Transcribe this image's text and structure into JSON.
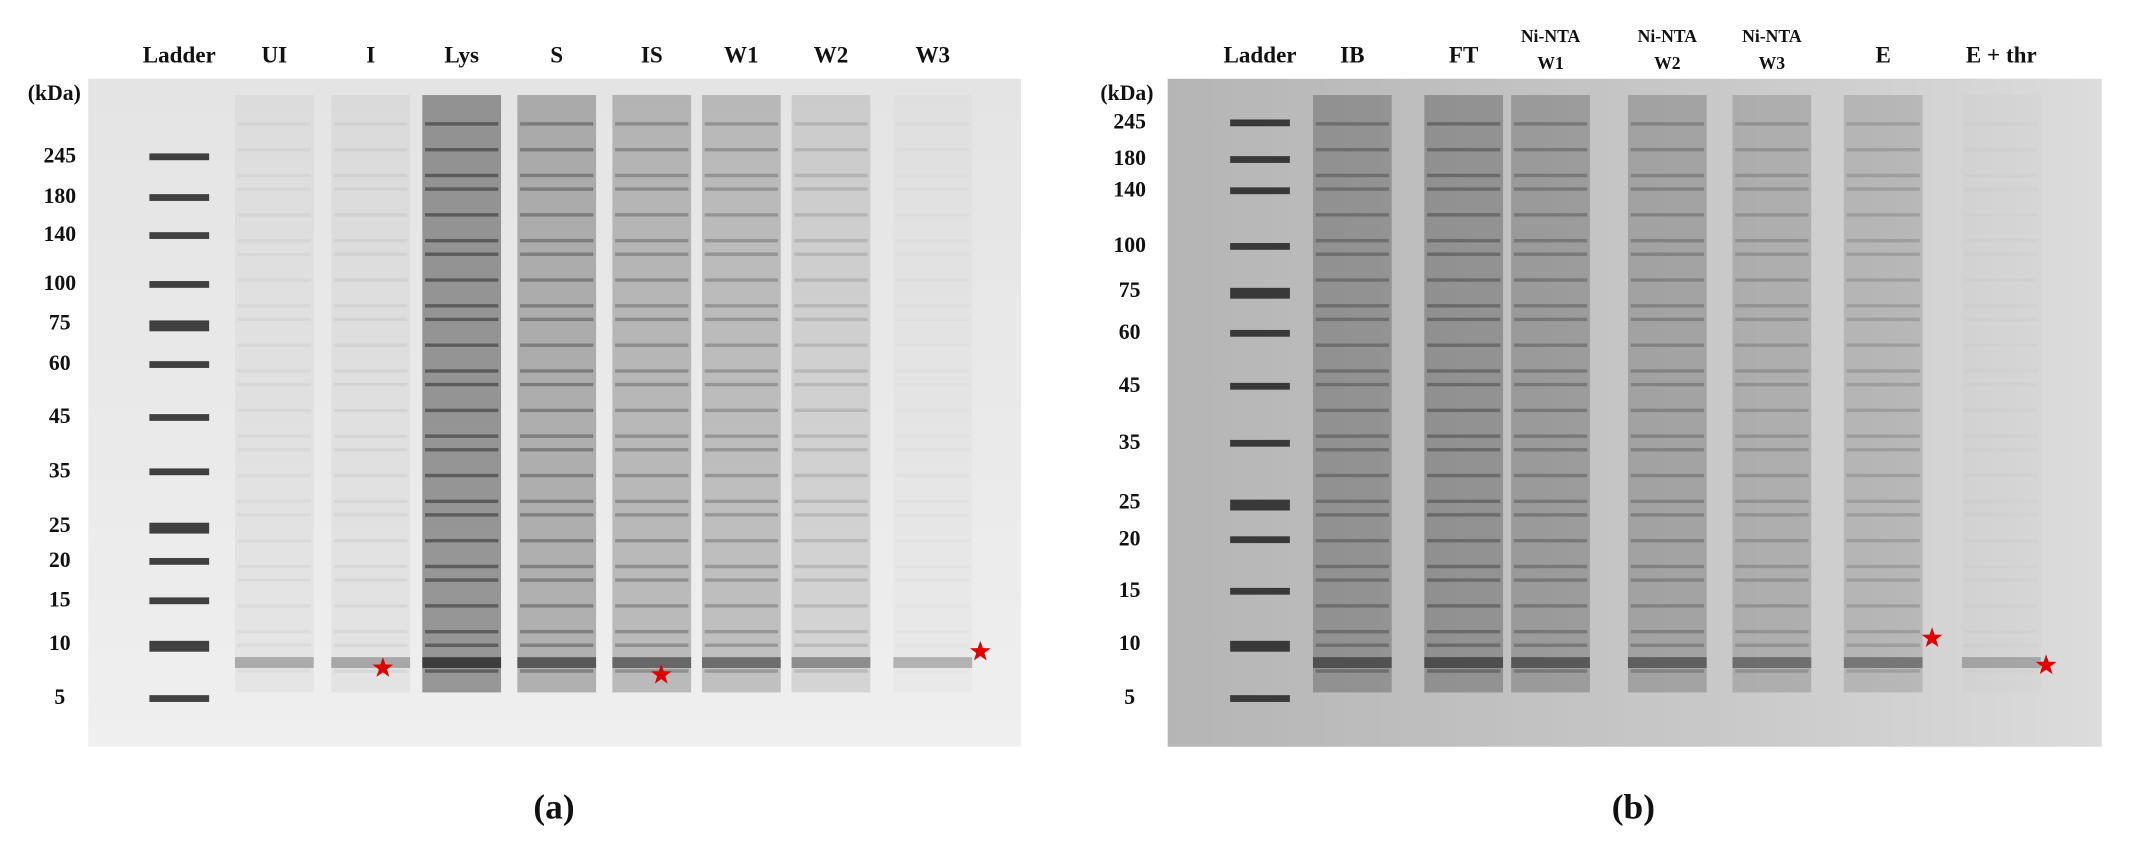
{
  "panels": [
    {
      "caption": "(a)",
      "unit": "(kDa)",
      "lanes": [
        "Ladder",
        "UI",
        "I",
        "Lys",
        "S",
        "IS",
        "W1",
        "W2",
        "W3"
      ],
      "markers": [
        "245",
        "180",
        "140",
        "100",
        "75",
        "60",
        "45",
        "35",
        "25",
        "20",
        "15",
        "10",
        "5"
      ]
    },
    {
      "caption": "(b)",
      "unit": "(kDa)",
      "lanes": [
        "Ladder",
        "IB",
        "FT",
        [
          "Ni-NTA",
          "W1"
        ],
        [
          "Ni-NTA",
          "W2"
        ],
        [
          "Ni-NTA",
          "W3"
        ],
        "E",
        "E + thr"
      ],
      "markers": [
        "245",
        "180",
        "140",
        "100",
        "75",
        "60",
        "45",
        "35",
        "25",
        "20",
        "15",
        "10",
        "5"
      ]
    }
  ]
}
